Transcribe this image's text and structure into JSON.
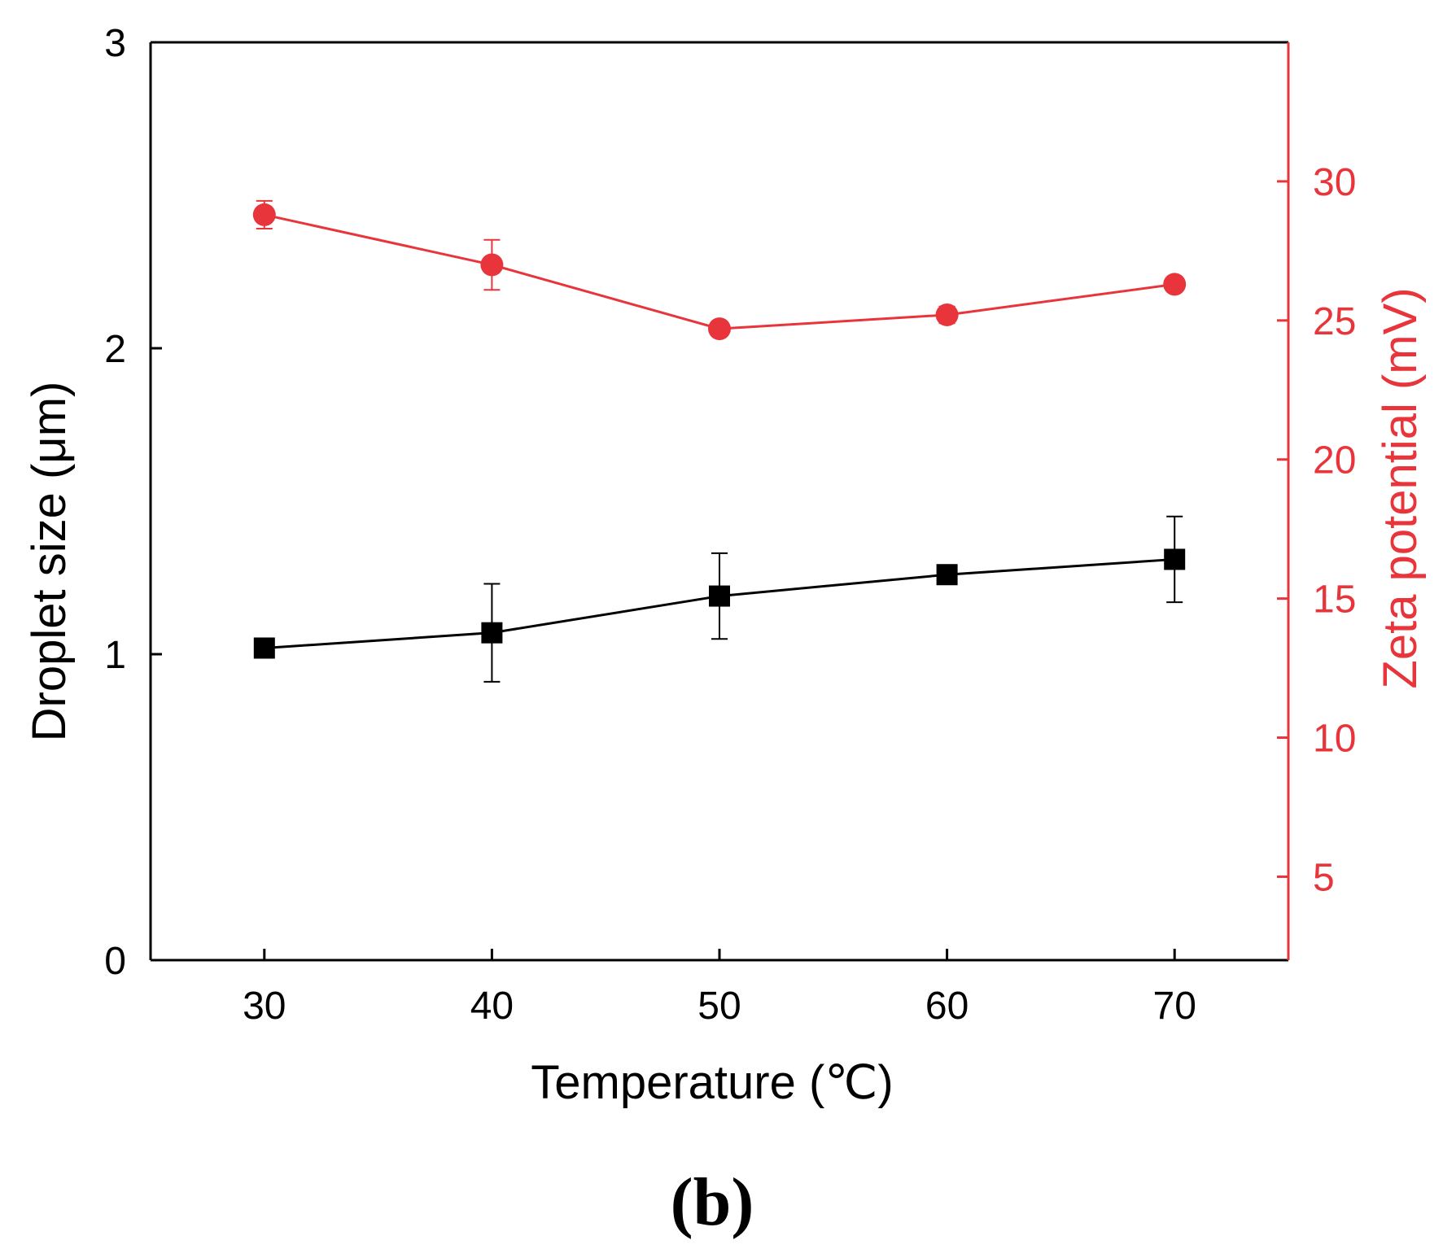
{
  "chart_data": {
    "type": "line",
    "xlabel": "Temperature (℃)",
    "ylabel_left": "Droplet size (μm)",
    "ylabel_right": "Zeta potential (mV)",
    "panel_label": "(b)",
    "xlim": [
      25,
      75
    ],
    "ylim_left": [
      0,
      3
    ],
    "ylim_right": [
      2,
      35
    ],
    "x_ticks": [
      30,
      40,
      50,
      60,
      70
    ],
    "y_left_ticks": [
      0,
      1,
      2,
      3
    ],
    "y_right_ticks": [
      5,
      10,
      15,
      20,
      25,
      30
    ],
    "series": [
      {
        "name": "Droplet size",
        "axis": "left",
        "color": "#000000",
        "marker": "square",
        "x": [
          30,
          40,
          50,
          60,
          70
        ],
        "y": [
          1.02,
          1.07,
          1.19,
          1.26,
          1.31
        ],
        "error": [
          0.0,
          0.16,
          0.14,
          0.0,
          0.14
        ]
      },
      {
        "name": "Zeta potential",
        "axis": "right",
        "color": "#e8353b",
        "marker": "circle",
        "x": [
          30,
          40,
          50,
          60,
          70
        ],
        "y": [
          28.8,
          27.0,
          24.7,
          25.2,
          26.3
        ],
        "error": [
          0.5,
          0.9,
          0.0,
          0.3,
          0.0
        ]
      }
    ],
    "colors": {
      "axis_left": "#000000",
      "axis_right": "#e8353b"
    }
  }
}
